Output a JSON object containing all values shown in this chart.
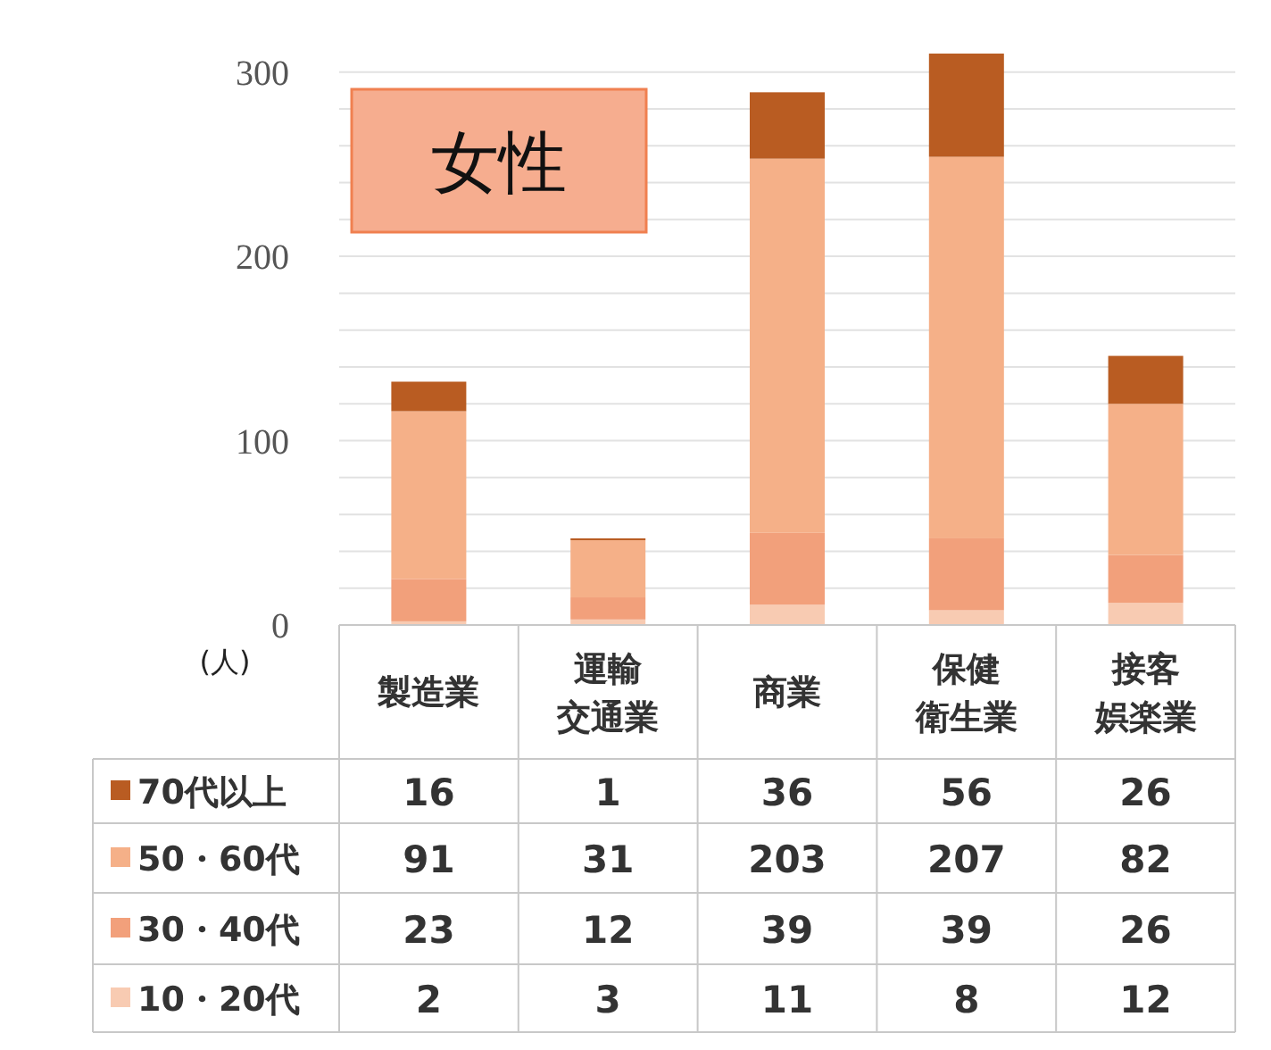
{
  "chart_data": {
    "type": "bar",
    "stacked": true,
    "title": "女性",
    "ylabel": "(人)",
    "categories": [
      "製造業",
      "運輸交通業",
      "商業",
      "保健衛生業",
      "接客娯楽業"
    ],
    "series": [
      {
        "name": "10・20代",
        "color": "#f8cbb2",
        "values": [
          2,
          3,
          11,
          8,
          12
        ]
      },
      {
        "name": "30・40代",
        "color": "#f2a07b",
        "values": [
          23,
          12,
          39,
          39,
          26
        ]
      },
      {
        "name": "50・60代",
        "color": "#f5b088",
        "values": [
          91,
          31,
          203,
          207,
          82
        ]
      },
      {
        "name": "70代以上",
        "color": "#b95c22",
        "values": [
          16,
          1,
          36,
          56,
          26
        ]
      }
    ],
    "ylim": [
      0,
      310
    ],
    "yticks": [
      0,
      {
        "value": 20,
        "label": null
      },
      {
        "value": 40,
        "label": null
      },
      {
        "value": 60,
        "label": null
      },
      {
        "value": 80,
        "label": null
      },
      100,
      {
        "value": 120,
        "label": null
      },
      {
        "value": 140,
        "label": null
      },
      {
        "value": 160,
        "label": null
      },
      {
        "value": 180,
        "label": null
      },
      200,
      {
        "value": 220,
        "label": null
      },
      {
        "value": 240,
        "label": null
      },
      {
        "value": 260,
        "label": null
      },
      {
        "value": 280,
        "label": null
      },
      300
    ],
    "grid": "y",
    "legend": "bottom",
    "data_labels": true
  }
}
